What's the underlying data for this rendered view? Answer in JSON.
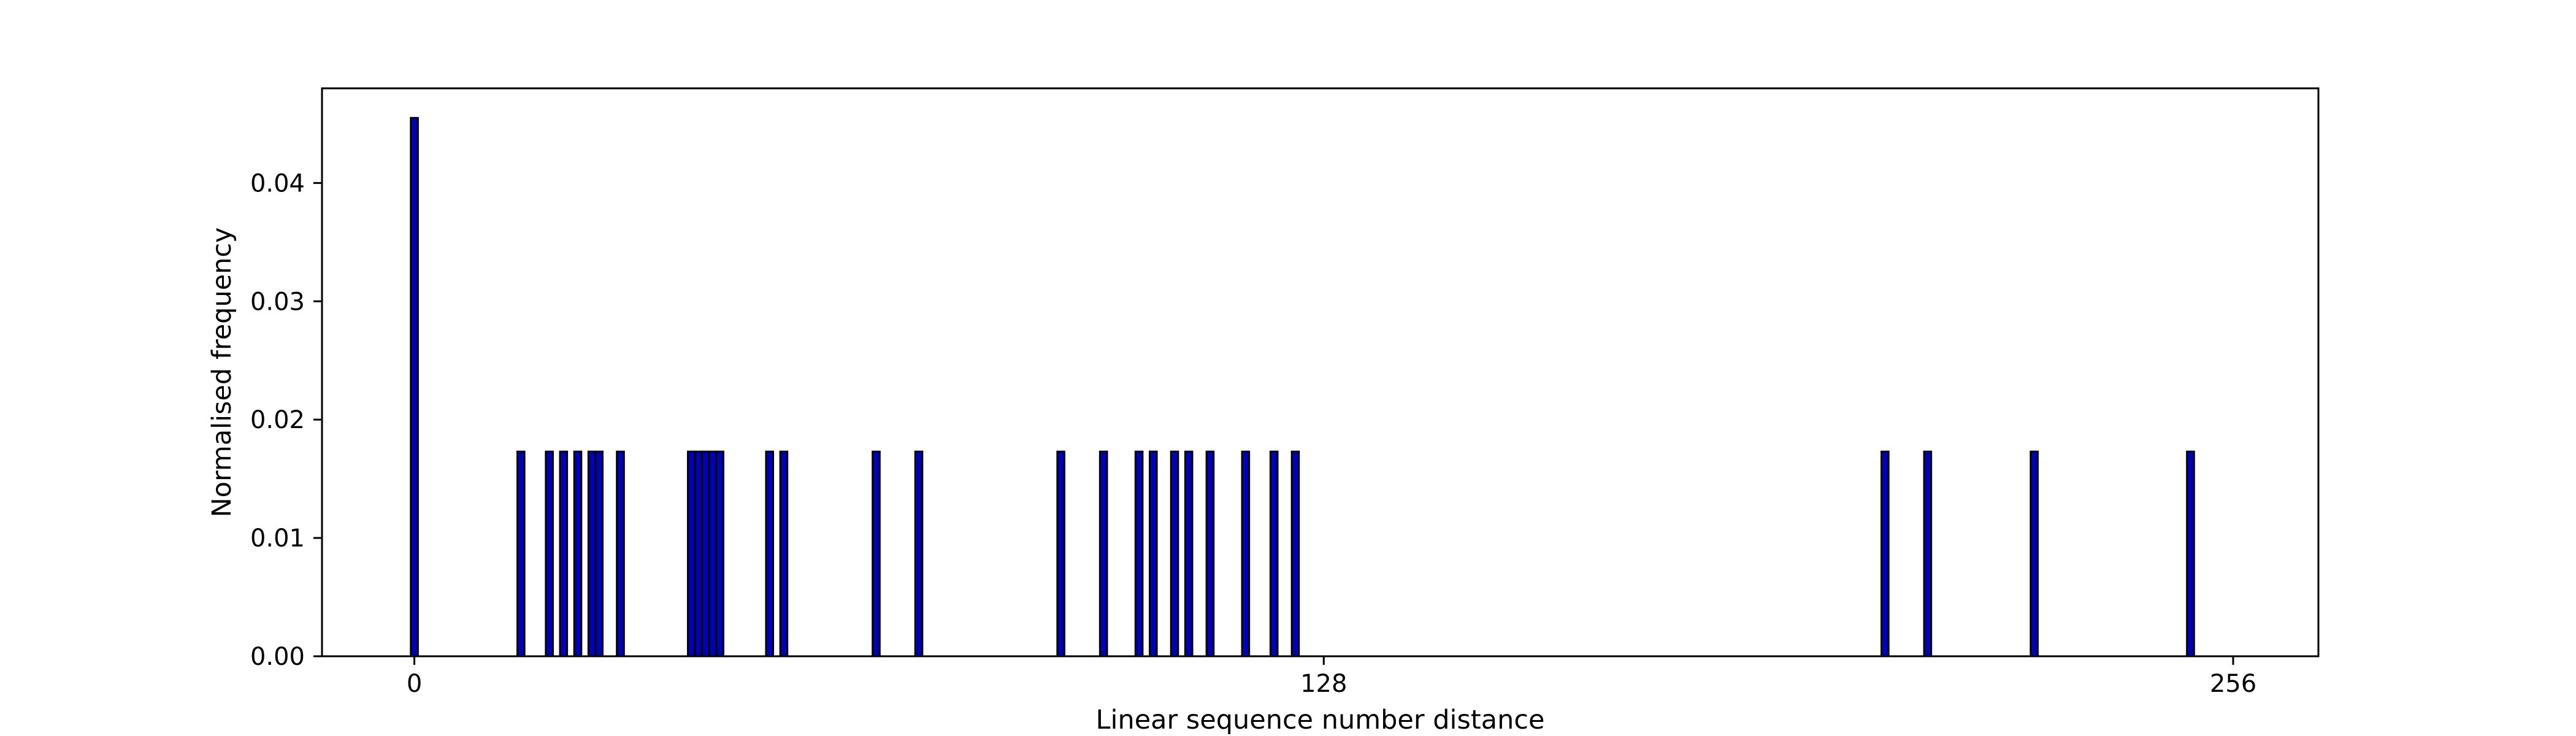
{
  "chart_data": {
    "type": "bar",
    "title": "",
    "xlabel": "Linear sequence number distance",
    "ylabel": "Normalised frequency",
    "xlim": [
      -13,
      268
    ],
    "ylim": [
      0,
      0.048
    ],
    "xticks": [
      0,
      128,
      256
    ],
    "xtick_labels": [
      "0",
      "128",
      "256"
    ],
    "yticks": [
      0.0,
      0.01,
      0.02,
      0.03,
      0.04
    ],
    "ytick_labels": [
      "0.00",
      "0.01",
      "0.02",
      "0.03",
      "0.04"
    ],
    "bar_width": 1,
    "grid": false,
    "legend": "none",
    "colors": {
      "bar_fill": "#0000b4",
      "bar_edge": "#000000",
      "axes": "#000000",
      "background": "#ffffff"
    },
    "series": [
      {
        "x": [
          0,
          15,
          19,
          21,
          23,
          25,
          26,
          29,
          39,
          40,
          41,
          42,
          43,
          50,
          52,
          65,
          71,
          91,
          97,
          102,
          104,
          107,
          109,
          112,
          117,
          121,
          124,
          207,
          213,
          228,
          250
        ],
        "values": [
          0.0455,
          0.0173,
          0.0173,
          0.0173,
          0.0173,
          0.0173,
          0.0173,
          0.0173,
          0.0173,
          0.0173,
          0.0173,
          0.0173,
          0.0173,
          0.0173,
          0.0173,
          0.0173,
          0.0173,
          0.0173,
          0.0173,
          0.0173,
          0.0173,
          0.0173,
          0.0173,
          0.0173,
          0.0173,
          0.0173,
          0.0173,
          0.0173,
          0.0173,
          0.0173,
          0.0173
        ]
      }
    ]
  }
}
